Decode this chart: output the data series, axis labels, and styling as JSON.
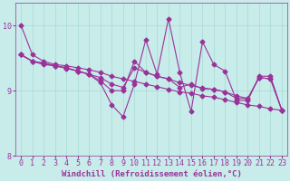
{
  "background_color": "#c8ecea",
  "line_color": "#993399",
  "marker": "D",
  "markersize": 2.5,
  "linewidth": 0.8,
  "xlabel": "Windchill (Refroidissement éolien,°C)",
  "xlabel_fontsize": 6.5,
  "tick_fontsize": 6,
  "xlim": [
    -0.5,
    23.5
  ],
  "ylim": [
    8.45,
    10.35
  ],
  "yticks": [
    8,
    9,
    10
  ],
  "xticks": [
    0,
    1,
    2,
    3,
    4,
    5,
    6,
    7,
    8,
    9,
    10,
    11,
    12,
    13,
    14,
    15,
    16,
    17,
    18,
    19,
    20,
    21,
    22,
    23
  ],
  "grid_color": "#a8d8d4",
  "grid_linewidth": 0.5,
  "series": [
    [
      10.0,
      9.55,
      9.45,
      9.4,
      9.38,
      9.35,
      9.32,
      9.28,
      9.22,
      9.18,
      9.14,
      9.1,
      9.06,
      9.02,
      8.98,
      8.96,
      8.92,
      8.9,
      8.86,
      8.82,
      8.78,
      8.76,
      8.72,
      8.7
    ],
    [
      9.55,
      9.45,
      9.42,
      9.38,
      9.35,
      9.3,
      9.25,
      9.2,
      9.1,
      9.05,
      9.35,
      9.28,
      9.22,
      9.18,
      9.12,
      9.08,
      9.04,
      9.02,
      8.98,
      8.92,
      8.88,
      9.2,
      9.18,
      8.7
    ],
    [
      9.55,
      9.45,
      9.4,
      9.38,
      9.34,
      9.3,
      9.25,
      9.12,
      8.78,
      8.6,
      9.1,
      9.78,
      9.25,
      10.1,
      9.28,
      8.68,
      9.75,
      9.4,
      9.3,
      8.85,
      8.85,
      9.22,
      9.22,
      8.7
    ],
    [
      9.55,
      9.45,
      9.42,
      9.38,
      9.35,
      9.3,
      9.25,
      9.15,
      9.0,
      9.0,
      9.45,
      9.28,
      9.22,
      9.18,
      9.05,
      9.1,
      9.03,
      9.02,
      8.98,
      8.88,
      8.88,
      9.2,
      9.18,
      8.7
    ]
  ]
}
